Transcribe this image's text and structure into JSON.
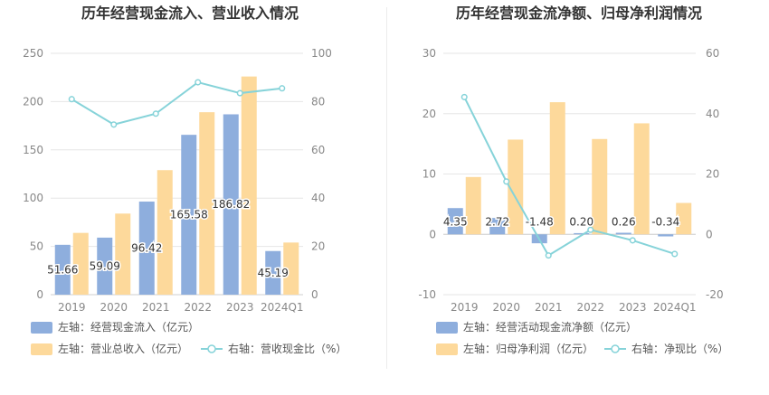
{
  "charts": [
    {
      "title": "历年经营现金流入、营业收入情况",
      "type": "bar+line",
      "categories": [
        "2019",
        "2020",
        "2021",
        "2022",
        "2023",
        "2024Q1"
      ],
      "left_axis": {
        "min": 0,
        "max": 250,
        "ticks": [
          "0",
          "50",
          "100",
          "150",
          "200",
          "250"
        ]
      },
      "right_axis": {
        "min": 0,
        "max": 100,
        "ticks": [
          "0",
          "20",
          "40",
          "60",
          "80",
          "100"
        ]
      },
      "series": [
        {
          "name": "左轴：经营现金流入（亿元）",
          "type": "bar",
          "axis": "left",
          "color": "#8eaedd",
          "values": [
            51.66,
            59.09,
            96.42,
            165.58,
            186.82,
            45.19
          ],
          "labels": [
            "51.66",
            "59.09",
            "96.42",
            "165.58",
            "186.82",
            "45.19"
          ]
        },
        {
          "name": "左轴：营业总收入（亿元）",
          "type": "bar",
          "axis": "left",
          "color": "#fdd99b",
          "values": [
            64,
            84,
            129,
            189,
            226,
            54
          ]
        },
        {
          "name": "右轴：营收现金比（%）",
          "type": "line",
          "axis": "right",
          "color": "#86d3d9",
          "values": [
            81,
            70.5,
            75,
            88,
            83.5,
            85.5
          ]
        }
      ]
    },
    {
      "title": "历年经营现金流净额、归母净利润情况",
      "type": "bar+line",
      "categories": [
        "2019",
        "2020",
        "2021",
        "2022",
        "2023",
        "2024Q1"
      ],
      "left_axis": {
        "min": -10,
        "max": 30,
        "ticks": [
          "-10",
          "0",
          "10",
          "20",
          "30"
        ]
      },
      "right_axis": {
        "min": -20,
        "max": 60,
        "ticks": [
          "-20",
          "0",
          "20",
          "40",
          "60"
        ]
      },
      "series": [
        {
          "name": "左轴：经营活动现金流净额（亿元）",
          "type": "bar",
          "axis": "left",
          "color": "#8eaedd",
          "values": [
            4.35,
            2.72,
            -1.48,
            0.2,
            0.26,
            -0.34
          ],
          "labels": [
            "4.35",
            "2.72",
            "-1.48",
            "0.20",
            "0.26",
            "-0.34"
          ]
        },
        {
          "name": "左轴：归母净利润（亿元）",
          "type": "bar",
          "axis": "left",
          "color": "#fdd99b",
          "values": [
            9.5,
            15.7,
            21.9,
            15.8,
            18.4,
            5.2
          ]
        },
        {
          "name": "右轴：净现比（%）",
          "type": "line",
          "axis": "right",
          "color": "#86d3d9",
          "values": [
            45.5,
            17.5,
            -7,
            1.5,
            -2,
            -6.5
          ]
        }
      ]
    }
  ]
}
